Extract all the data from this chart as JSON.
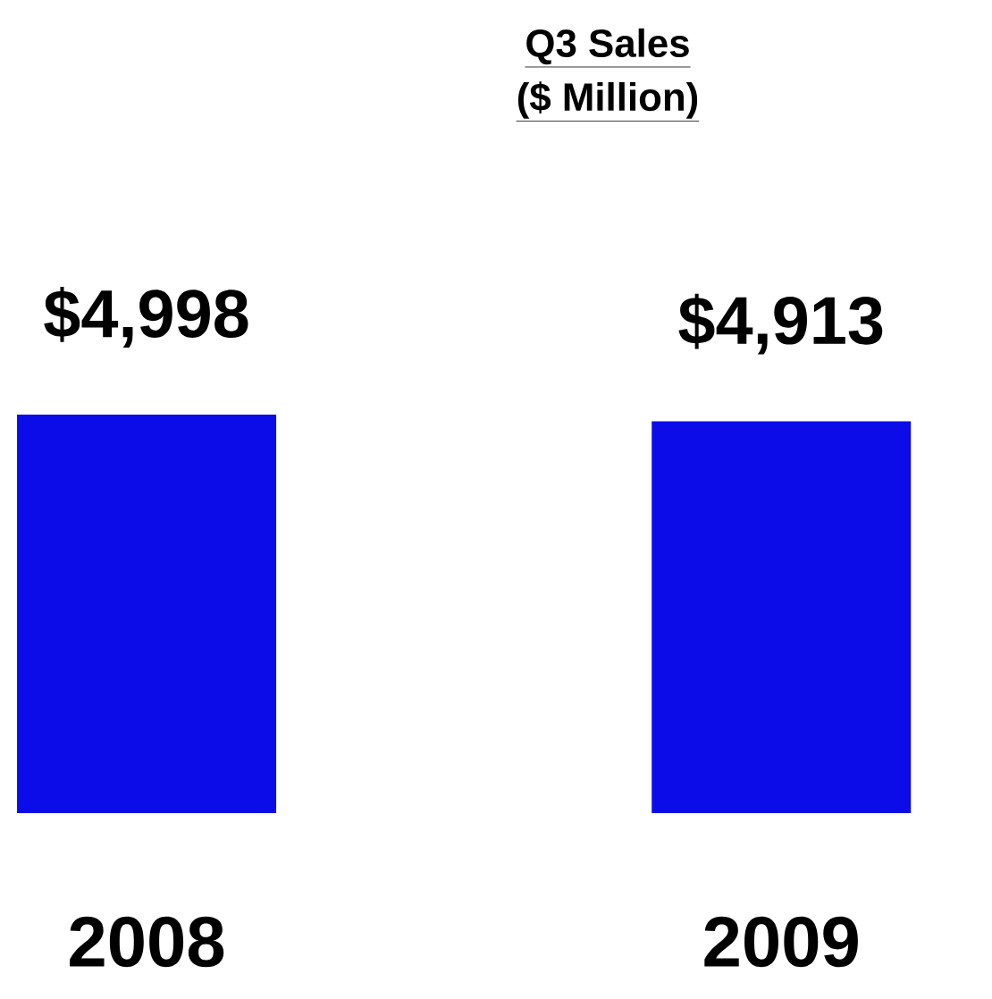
{
  "chart_data": {
    "type": "bar",
    "title": "Q3 Sales",
    "subtitle": "($ Million)",
    "categories": [
      "2008",
      "2009"
    ],
    "values": [
      4998,
      4913
    ],
    "value_labels": [
      "$4,998",
      "$4,913"
    ],
    "color": "#0c0ce8"
  }
}
